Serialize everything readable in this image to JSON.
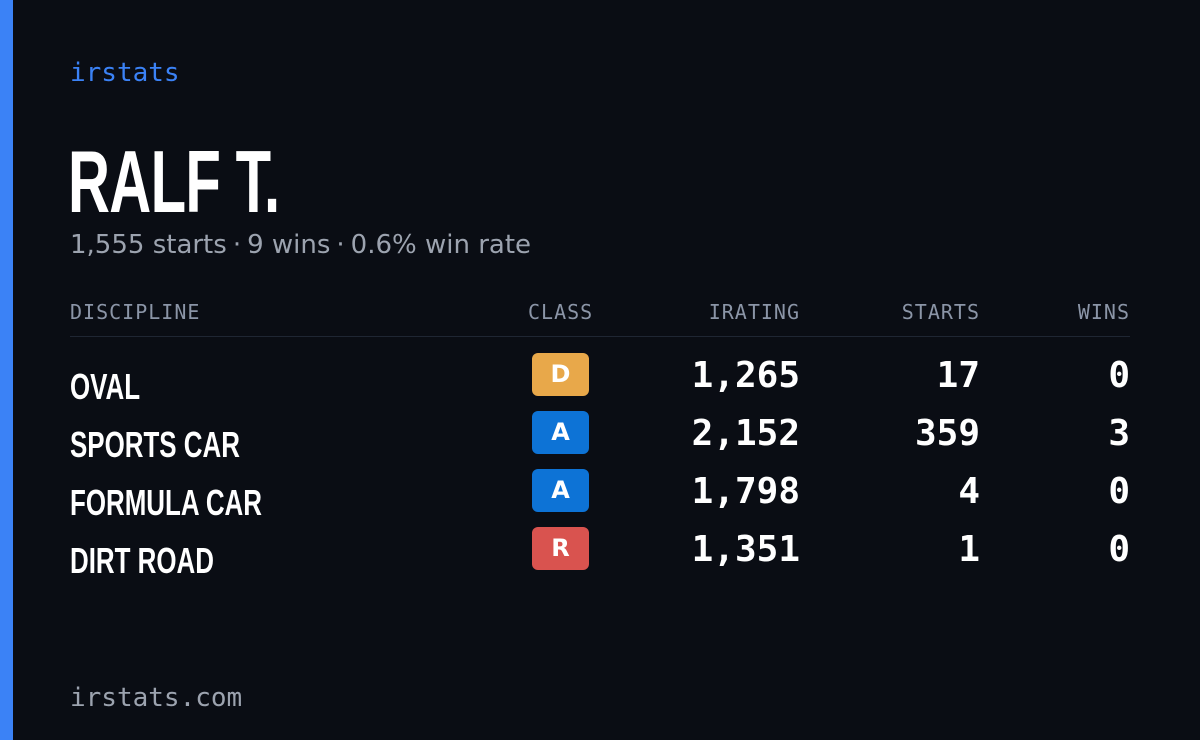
{
  "brand": "irstats",
  "driver": {
    "name": "RALF T.",
    "starts_text": "1,555 starts",
    "wins_text": "9 wins",
    "win_rate_text": "0.6% win rate",
    "separator": "·"
  },
  "table": {
    "headers": {
      "discipline": "DISCIPLINE",
      "class": "CLASS",
      "irating": "IRATING",
      "starts": "STARTS",
      "wins": "WINS"
    },
    "rows": [
      {
        "discipline": "OVAL",
        "class": "D",
        "class_color": "#e8a84a",
        "irating": "1,265",
        "starts": "17",
        "wins": "0"
      },
      {
        "discipline": "SPORTS CAR",
        "class": "A",
        "class_color": "#0d73d6",
        "irating": "2,152",
        "starts": "359",
        "wins": "3"
      },
      {
        "discipline": "FORMULA CAR",
        "class": "A",
        "class_color": "#0d73d6",
        "irating": "1,798",
        "starts": "4",
        "wins": "0"
      },
      {
        "discipline": "DIRT ROAD",
        "class": "R",
        "class_color": "#d9534f",
        "irating": "1,351",
        "starts": "1",
        "wins": "0"
      }
    ]
  },
  "footer": "irstats.com",
  "colors": {
    "accent": "#3b82f6",
    "background": "#0a0d14",
    "muted_text": "#9ca3af"
  }
}
